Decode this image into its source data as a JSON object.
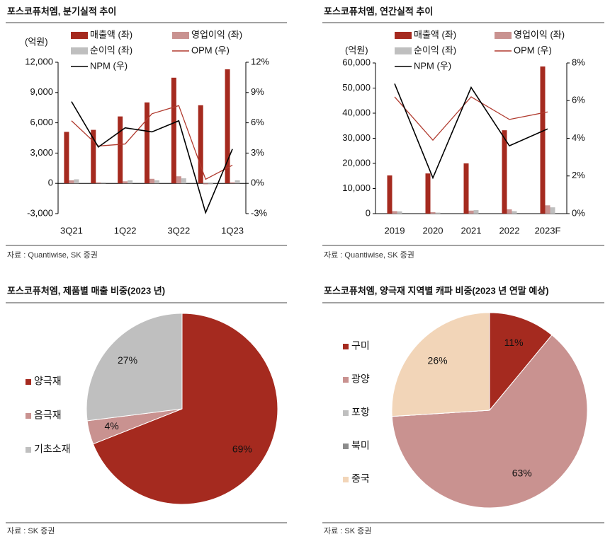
{
  "chart_data": [
    {
      "type": "bar",
      "title": "포스코퓨처엠, 분기실적 추이",
      "unit": "(억원)",
      "source": "자료 : Quantiwise, SK 증권",
      "categories": [
        "3Q21",
        null,
        "1Q22",
        null,
        "3Q22",
        null,
        "1Q23"
      ],
      "series": [
        {
          "name": "매출액 (좌)",
          "type": "bar",
          "color": "#a52a1f",
          "values": [
            5100,
            5300,
            6630,
            8020,
            10470,
            7740,
            11300
          ]
        },
        {
          "name": "영업이익 (좌)",
          "type": "bar",
          "color": "#c99290",
          "values": [
            300,
            100,
            200,
            450,
            700,
            -100,
            100
          ]
        },
        {
          "name": "순이익 (좌)",
          "type": "bar",
          "color": "#bfbfbf",
          "values": [
            400,
            100,
            300,
            300,
            500,
            -100,
            300
          ]
        },
        {
          "name": "OPM (우)",
          "type": "line",
          "axis": "y2",
          "color": "#b03a2e",
          "values": [
            6.2,
            3.7,
            3.9,
            6.9,
            7.7,
            0.4,
            1.8
          ]
        },
        {
          "name": "NPM (우)",
          "type": "line",
          "axis": "y2",
          "color": "#000000",
          "values": [
            8.1,
            3.6,
            5.5,
            5.1,
            6.2,
            -2.9,
            3.4
          ]
        }
      ],
      "ylim": [
        -3000,
        12000
      ],
      "yticks": [
        {
          "value": -3000,
          "label": "-3,000"
        },
        0,
        {
          "value": 3000,
          "label": "3,000"
        },
        {
          "value": 6000,
          "label": "6,000"
        },
        {
          "value": 9000,
          "label": "9,000"
        },
        {
          "value": 12000,
          "label": "12,000"
        }
      ],
      "y2lim": [
        -3,
        12
      ],
      "y2ticks": [
        {
          "value": -3,
          "label": "-3%"
        },
        {
          "value": 0,
          "label": "0%"
        },
        {
          "value": 3,
          "label": "3%"
        },
        {
          "value": 6,
          "label": "6%"
        },
        {
          "value": 9,
          "label": "9%"
        },
        {
          "value": 12,
          "label": "12%"
        }
      ]
    },
    {
      "type": "bar",
      "title": "포스코퓨처엠, 연간실적 추이",
      "unit": "(억원)",
      "source": "자료 : Quantiwise, SK 증권",
      "categories": [
        "2019",
        "2020",
        "2021",
        "2022",
        "2023F"
      ],
      "series": [
        {
          "name": "매출액 (좌)",
          "type": "bar",
          "color": "#a52a1f",
          "values": [
            15200,
            16000,
            20000,
            33200,
            58600
          ]
        },
        {
          "name": "영업이익 (좌)",
          "type": "bar",
          "color": "#c99290",
          "values": [
            1000,
            600,
            1200,
            1700,
            3300
          ]
        },
        {
          "name": "순이익 (좌)",
          "type": "bar",
          "color": "#bfbfbf",
          "values": [
            900,
            400,
            1400,
            1000,
            2500
          ]
        },
        {
          "name": "OPM (우)",
          "type": "line",
          "axis": "y2",
          "color": "#b03a2e",
          "values": [
            6.2,
            3.9,
            6.2,
            5.0,
            5.4
          ]
        },
        {
          "name": "NPM (우)",
          "type": "line",
          "axis": "y2",
          "color": "#000000",
          "values": [
            6.9,
            1.9,
            6.7,
            3.6,
            4.5
          ]
        }
      ],
      "ylim": [
        0,
        60000
      ],
      "yticks": [
        0,
        {
          "value": 10000,
          "label": "10,000"
        },
        {
          "value": 20000,
          "label": "20,000"
        },
        {
          "value": 30000,
          "label": "30,000"
        },
        {
          "value": 40000,
          "label": "40,000"
        },
        {
          "value": 50000,
          "label": "50,000"
        },
        {
          "value": 60000,
          "label": "60,000"
        }
      ],
      "y2lim": [
        0,
        8
      ],
      "y2ticks": [
        {
          "value": 0,
          "label": "0%"
        },
        {
          "value": 2,
          "label": "2%"
        },
        {
          "value": 4,
          "label": "4%"
        },
        {
          "value": 6,
          "label": "6%"
        },
        {
          "value": 8,
          "label": "8%"
        }
      ]
    },
    {
      "type": "pie",
      "title": "포스코퓨처엠, 제품별 매출 비중(2023 년)",
      "source": "자료 : SK 증권",
      "categories": [
        "양극재",
        "음극재",
        "기초소재"
      ],
      "values": [
        69,
        4,
        27
      ],
      "value_labels": [
        "69%",
        "4%",
        "27%"
      ],
      "colors": [
        "#a52a1f",
        "#c99290",
        "#bfbfbf"
      ]
    },
    {
      "type": "pie",
      "title": "포스코퓨처엠, 양극재 지역별 캐파 비중(2023 년 연말 예상)",
      "source": "자료 : SK 증권",
      "categories": [
        "구미",
        "광양",
        "포항",
        "북미",
        "중국"
      ],
      "values": [
        11,
        63,
        0,
        0,
        26
      ],
      "value_labels": [
        "11%",
        "63%",
        null,
        null,
        "26%"
      ],
      "colors": [
        "#a52a1f",
        "#c99290",
        "#bfbfbf",
        "#8c8c8c",
        "#f2d5b8"
      ]
    }
  ]
}
